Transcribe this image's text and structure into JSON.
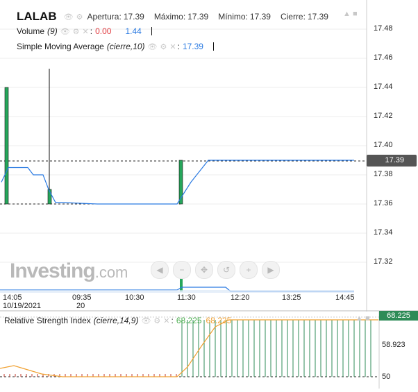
{
  "main_legend": {
    "ticker": "LALAB",
    "fields": [
      {
        "label": "Apertura:",
        "value": "17.39"
      },
      {
        "label": "Máximo:",
        "value": "17.39"
      },
      {
        "label": "Mínimo:",
        "value": "17.39"
      },
      {
        "label": "Cierre:",
        "value": "17.39"
      }
    ],
    "volume": {
      "label": "Volume",
      "param": "(9)",
      "value1": "0.00",
      "value2": "1.44"
    },
    "sma": {
      "label": "Simple Moving Average",
      "param": "(cierre,10)",
      "value": "17.39"
    }
  },
  "price_axis": {
    "ticks": [
      "17.48",
      "17.46",
      "17.44",
      "17.42",
      "17.40",
      "17.38",
      "17.36",
      "17.34",
      "17.32"
    ],
    "last_price": "17.39"
  },
  "time_axis": {
    "ticks": [
      {
        "line1": "14:05",
        "line2": "10/19/2021"
      },
      {
        "line1": "09:35",
        "line2": "20"
      },
      {
        "line1": "10:30",
        "line2": ""
      },
      {
        "line1": "11:30",
        "line2": ""
      },
      {
        "line1": "12:20",
        "line2": ""
      },
      {
        "line1": "13:25",
        "line2": ""
      },
      {
        "line1": "14:45",
        "line2": ""
      }
    ]
  },
  "watermark": {
    "brand": "Investing",
    "suffix": ".com"
  },
  "nav_controls": [
    "scroll-left-icon",
    "zoom-out-icon",
    "crosshair-icon",
    "reset-icon",
    "zoom-in-icon",
    "scroll-right-icon"
  ],
  "rsi": {
    "label": "Relative Strength Index",
    "param": "(cierre,14,9)",
    "value1": "68.225",
    "value2": "68.225",
    "badge": "68.225",
    "ticks": [
      "58.923",
      "50"
    ]
  },
  "colors": {
    "up": "#26a65b",
    "sma": "#2a7ae2",
    "rsi": "#f0a030",
    "rsi_bar_up": "#2e8b57",
    "rsi_bar_down": "#c0392b",
    "last_price_bg": "#555555"
  },
  "chart_data": {
    "type": "candlestick",
    "price_range": [
      17.31,
      17.49
    ],
    "last_price": 17.39,
    "candles": [
      {
        "time": "14:05",
        "open": 17.36,
        "close": 17.44
      },
      {
        "time": "09:35",
        "open": 17.36,
        "close": 17.37,
        "high": 17.45
      },
      {
        "time": "11:30",
        "open": 17.36,
        "close": 17.39
      }
    ],
    "sma_values": [
      17.375,
      17.385,
      17.385,
      17.38,
      17.38,
      17.37,
      17.361,
      17.361,
      17.36,
      17.36,
      17.36,
      17.36,
      17.36,
      17.36,
      17.36,
      17.375,
      17.39,
      17.39,
      17.39,
      17.39,
      17.39
    ]
  }
}
